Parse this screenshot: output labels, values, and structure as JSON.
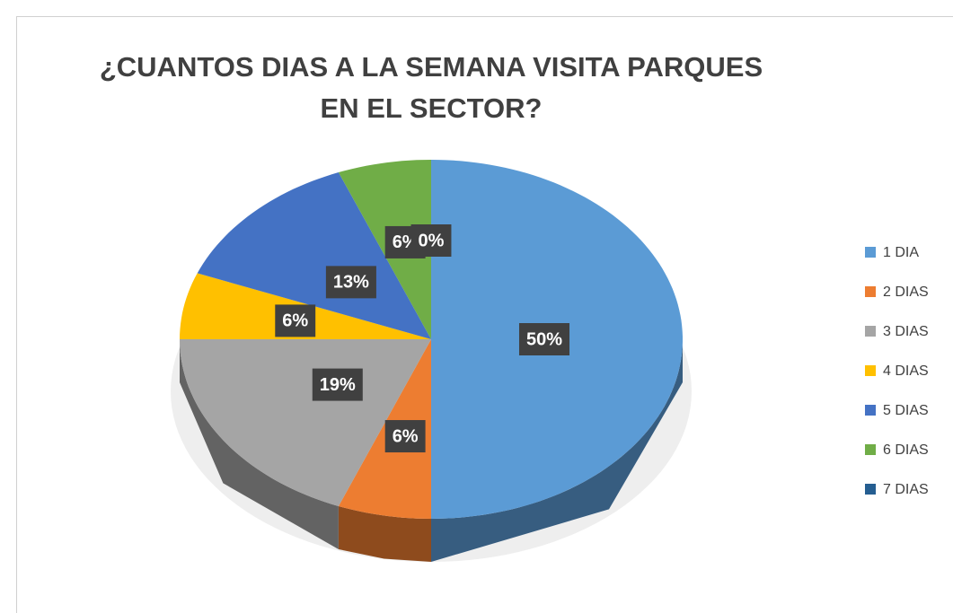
{
  "chart_data": {
    "type": "pie",
    "title": "¿CUANTOS DIAS A LA SEMANA VISITA PARQUES EN EL SECTOR?",
    "categories": [
      "1 DIA",
      "2 DIAS",
      "3 DIAS",
      "4 DIAS",
      "5 DIAS",
      "6 DIAS",
      "7 DIAS"
    ],
    "values": [
      50,
      6,
      19,
      6,
      13,
      6,
      0
    ],
    "value_labels": [
      "50%",
      "6%",
      "19%",
      "6%",
      "13%",
      "6%",
      "0%"
    ],
    "colors": [
      "#5b9bd5",
      "#ed7d31",
      "#a5a5a5",
      "#ffc000",
      "#4472c4",
      "#70ad47",
      "#255e91"
    ],
    "legend": "right"
  }
}
